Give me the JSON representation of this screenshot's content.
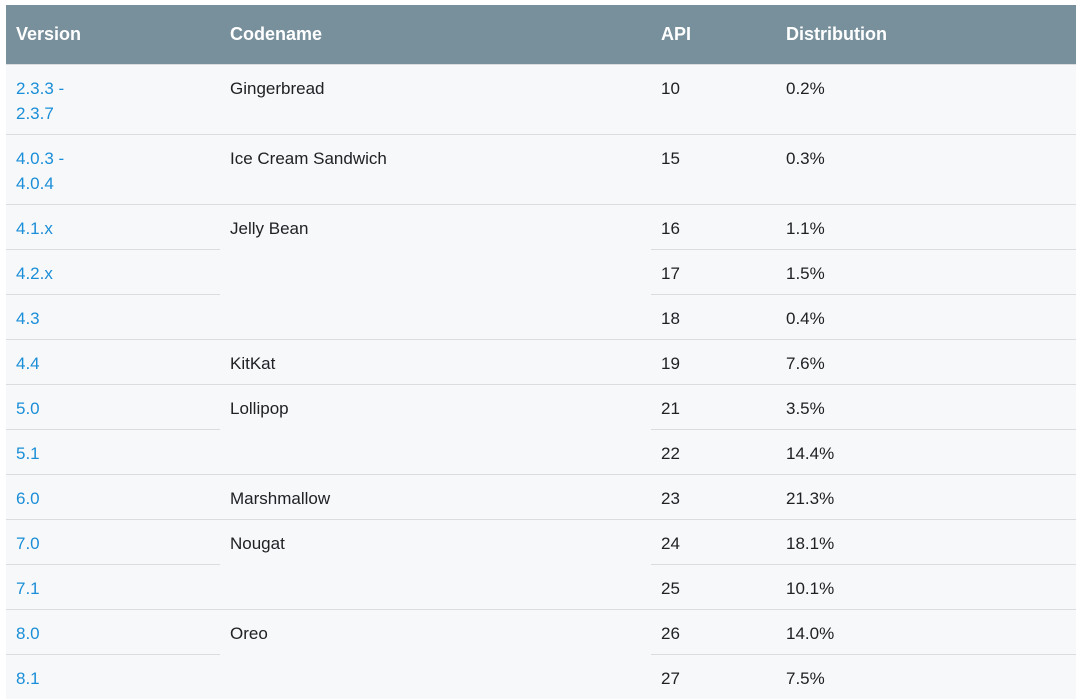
{
  "headers": {
    "version": "Version",
    "codename": "Codename",
    "api": "API",
    "distribution": "Distribution"
  },
  "rows": [
    {
      "version": "2.3.3 -\n2.3.7",
      "codename": "Gingerbread",
      "api": "10",
      "distribution": "0.2%"
    },
    {
      "version": "4.0.3 -\n4.0.4",
      "codename": "Ice Cream Sandwich",
      "api": "15",
      "distribution": "0.3%"
    },
    {
      "version": "4.1.x",
      "codename": "Jelly Bean",
      "api": "16",
      "distribution": "1.1%"
    },
    {
      "version": "4.2.x",
      "codename": "",
      "api": "17",
      "distribution": "1.5%"
    },
    {
      "version": "4.3",
      "codename": "",
      "api": "18",
      "distribution": "0.4%"
    },
    {
      "version": "4.4",
      "codename": "KitKat",
      "api": "19",
      "distribution": "7.6%"
    },
    {
      "version": "5.0",
      "codename": "Lollipop",
      "api": "21",
      "distribution": "3.5%"
    },
    {
      "version": "5.1",
      "codename": "",
      "api": "22",
      "distribution": "14.4%"
    },
    {
      "version": "6.0",
      "codename": "Marshmallow",
      "api": "23",
      "distribution": "21.3%"
    },
    {
      "version": "7.0",
      "codename": "Nougat",
      "api": "24",
      "distribution": "18.1%"
    },
    {
      "version": "7.1",
      "codename": "",
      "api": "25",
      "distribution": "10.1%"
    },
    {
      "version": "8.0",
      "codename": "Oreo",
      "api": "26",
      "distribution": "14.0%"
    },
    {
      "version": "8.1",
      "codename": "",
      "api": "27",
      "distribution": "7.5%"
    }
  ],
  "colors": {
    "header_bg": "#78909c",
    "header_text": "#ffffff",
    "link": "#1a8ed8",
    "row_bg": "#f7f8fa",
    "border": "#dadce0"
  }
}
